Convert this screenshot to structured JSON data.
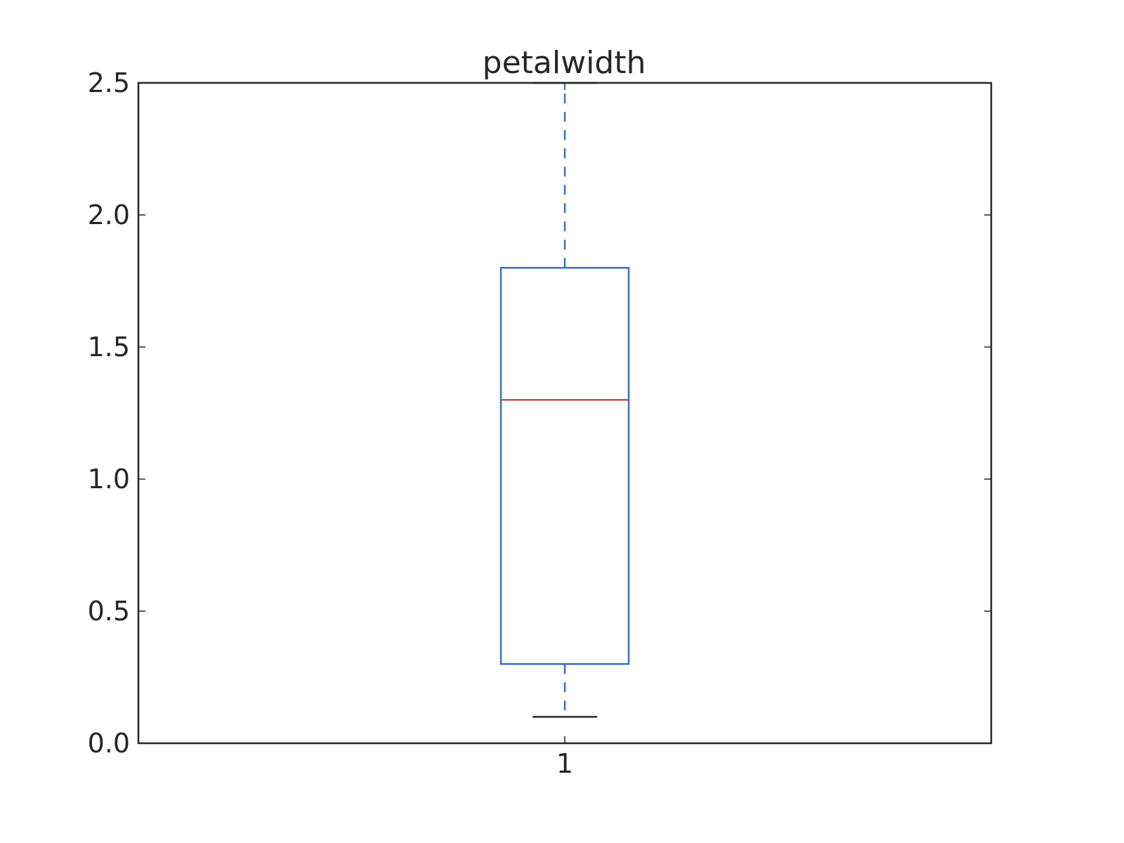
{
  "chart_data": {
    "type": "box",
    "title": "petalwidth",
    "xlabel": "",
    "ylabel": "",
    "categories": [
      "1"
    ],
    "ylim": [
      0.0,
      2.5
    ],
    "yticks": [
      "0.0",
      "0.5",
      "1.0",
      "1.5",
      "2.0",
      "2.5"
    ],
    "grid": false,
    "boxes": [
      {
        "category": "1",
        "whisker_low": 0.1,
        "q1": 0.3,
        "median": 1.3,
        "q3": 1.8,
        "whisker_high": 2.5
      }
    ],
    "colors": {
      "box": "#3a6fc4",
      "median": "#c44e52",
      "whisker": "#3a6fc4",
      "cap": "#262626",
      "axes": "#262626",
      "text": "#262626"
    }
  }
}
